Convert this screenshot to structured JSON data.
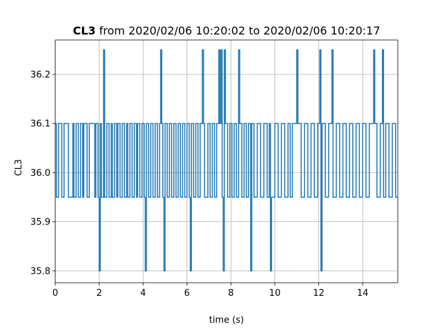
{
  "chart_data": {
    "type": "line",
    "title_bold": "CL3",
    "title_rest": " from 2020/02/06 10:20:02 to 2020/02/06 10:20:17",
    "xlabel": "time (s)",
    "ylabel": "CL3",
    "xlim": [
      0,
      15.6
    ],
    "ylim": [
      35.776,
      36.27
    ],
    "xticks": [
      0,
      2,
      4,
      6,
      8,
      10,
      12,
      14
    ],
    "yticks": [
      35.8,
      35.9,
      36.0,
      36.1,
      36.2
    ],
    "ytick_labels": [
      "35.8",
      "35.9",
      "36.0",
      "36.1",
      "36.2"
    ],
    "grid": true,
    "line_color": "#1f77b4",
    "series": [
      {
        "step": true,
        "values": [
          [
            0.0,
            36.1
          ],
          [
            0.05,
            35.95
          ],
          [
            0.15,
            36.1
          ],
          [
            0.3,
            35.95
          ],
          [
            0.4,
            36.1
          ],
          [
            0.55,
            36.1
          ],
          [
            0.6,
            35.95
          ],
          [
            0.7,
            35.95
          ],
          [
            0.8,
            36.1
          ],
          [
            0.85,
            35.95
          ],
          [
            0.95,
            36.1
          ],
          [
            1.05,
            35.95
          ],
          [
            1.15,
            36.1
          ],
          [
            1.25,
            35.95
          ],
          [
            1.3,
            36.1
          ],
          [
            1.45,
            35.95
          ],
          [
            1.55,
            36.1
          ],
          [
            1.7,
            36.1
          ],
          [
            1.8,
            35.95
          ],
          [
            1.85,
            36.1
          ],
          [
            1.95,
            35.95
          ],
          [
            2.0,
            35.8
          ],
          [
            2.05,
            36.1
          ],
          [
            2.1,
            35.95
          ],
          [
            2.2,
            36.25
          ],
          [
            2.25,
            35.95
          ],
          [
            2.35,
            36.1
          ],
          [
            2.45,
            35.95
          ],
          [
            2.55,
            36.1
          ],
          [
            2.6,
            35.95
          ],
          [
            2.7,
            36.1
          ],
          [
            2.8,
            35.95
          ],
          [
            2.85,
            36.1
          ],
          [
            2.95,
            35.95
          ],
          [
            3.05,
            36.1
          ],
          [
            3.15,
            35.95
          ],
          [
            3.25,
            36.1
          ],
          [
            3.3,
            35.95
          ],
          [
            3.4,
            36.1
          ],
          [
            3.5,
            35.95
          ],
          [
            3.6,
            36.1
          ],
          [
            3.7,
            35.95
          ],
          [
            3.75,
            36.1
          ],
          [
            3.85,
            35.95
          ],
          [
            3.95,
            36.1
          ],
          [
            4.05,
            35.95
          ],
          [
            4.1,
            35.8
          ],
          [
            4.15,
            36.1
          ],
          [
            4.25,
            35.95
          ],
          [
            4.35,
            36.1
          ],
          [
            4.45,
            35.95
          ],
          [
            4.55,
            36.1
          ],
          [
            4.65,
            35.95
          ],
          [
            4.75,
            36.1
          ],
          [
            4.8,
            36.25
          ],
          [
            4.85,
            36.1
          ],
          [
            4.9,
            35.95
          ],
          [
            4.95,
            35.8
          ],
          [
            5.0,
            36.1
          ],
          [
            5.1,
            35.95
          ],
          [
            5.2,
            36.1
          ],
          [
            5.3,
            35.95
          ],
          [
            5.4,
            36.1
          ],
          [
            5.5,
            35.95
          ],
          [
            5.6,
            36.1
          ],
          [
            5.7,
            35.95
          ],
          [
            5.8,
            36.1
          ],
          [
            5.9,
            35.95
          ],
          [
            6.0,
            36.1
          ],
          [
            6.1,
            35.95
          ],
          [
            6.15,
            35.8
          ],
          [
            6.2,
            36.1
          ],
          [
            6.3,
            35.95
          ],
          [
            6.4,
            36.1
          ],
          [
            6.5,
            35.95
          ],
          [
            6.6,
            36.1
          ],
          [
            6.7,
            36.25
          ],
          [
            6.75,
            36.1
          ],
          [
            6.8,
            35.95
          ],
          [
            6.95,
            36.1
          ],
          [
            7.05,
            35.95
          ],
          [
            7.15,
            36.1
          ],
          [
            7.25,
            35.95
          ],
          [
            7.35,
            36.1
          ],
          [
            7.45,
            36.25
          ],
          [
            7.5,
            36.1
          ],
          [
            7.55,
            36.25
          ],
          [
            7.6,
            35.95
          ],
          [
            7.65,
            35.8
          ],
          [
            7.7,
            36.25
          ],
          [
            7.75,
            36.1
          ],
          [
            7.85,
            35.95
          ],
          [
            7.95,
            36.1
          ],
          [
            8.05,
            35.95
          ],
          [
            8.15,
            36.1
          ],
          [
            8.25,
            35.95
          ],
          [
            8.35,
            36.25
          ],
          [
            8.4,
            36.1
          ],
          [
            8.5,
            35.95
          ],
          [
            8.6,
            36.1
          ],
          [
            8.7,
            35.95
          ],
          [
            8.8,
            36.1
          ],
          [
            8.9,
            35.8
          ],
          [
            8.95,
            36.1
          ],
          [
            9.05,
            35.95
          ],
          [
            9.2,
            36.1
          ],
          [
            9.35,
            35.95
          ],
          [
            9.5,
            36.1
          ],
          [
            9.65,
            35.95
          ],
          [
            9.75,
            36.1
          ],
          [
            9.8,
            35.8
          ],
          [
            9.85,
            35.95
          ],
          [
            10.0,
            36.1
          ],
          [
            10.15,
            35.95
          ],
          [
            10.3,
            36.1
          ],
          [
            10.45,
            35.95
          ],
          [
            10.6,
            36.1
          ],
          [
            10.7,
            35.95
          ],
          [
            10.8,
            36.1
          ],
          [
            11.0,
            36.25
          ],
          [
            11.05,
            36.1
          ],
          [
            11.2,
            35.95
          ],
          [
            11.35,
            36.1
          ],
          [
            11.5,
            35.95
          ],
          [
            11.65,
            36.1
          ],
          [
            11.8,
            35.95
          ],
          [
            11.95,
            36.1
          ],
          [
            12.05,
            36.25
          ],
          [
            12.1,
            35.8
          ],
          [
            12.15,
            36.1
          ],
          [
            12.3,
            35.95
          ],
          [
            12.45,
            36.1
          ],
          [
            12.6,
            36.25
          ],
          [
            12.65,
            35.95
          ],
          [
            12.8,
            36.1
          ],
          [
            12.95,
            35.95
          ],
          [
            13.1,
            36.1
          ],
          [
            13.25,
            35.95
          ],
          [
            13.4,
            36.1
          ],
          [
            13.55,
            35.95
          ],
          [
            13.7,
            36.1
          ],
          [
            13.85,
            35.95
          ],
          [
            14.0,
            36.1
          ],
          [
            14.15,
            35.95
          ],
          [
            14.3,
            36.1
          ],
          [
            14.5,
            36.25
          ],
          [
            14.55,
            36.1
          ],
          [
            14.65,
            35.95
          ],
          [
            14.8,
            36.1
          ],
          [
            14.9,
            36.25
          ],
          [
            14.95,
            35.95
          ],
          [
            15.05,
            36.1
          ],
          [
            15.2,
            35.95
          ],
          [
            15.35,
            36.1
          ],
          [
            15.5,
            35.95
          ],
          [
            15.6,
            35.95
          ]
        ]
      }
    ]
  }
}
